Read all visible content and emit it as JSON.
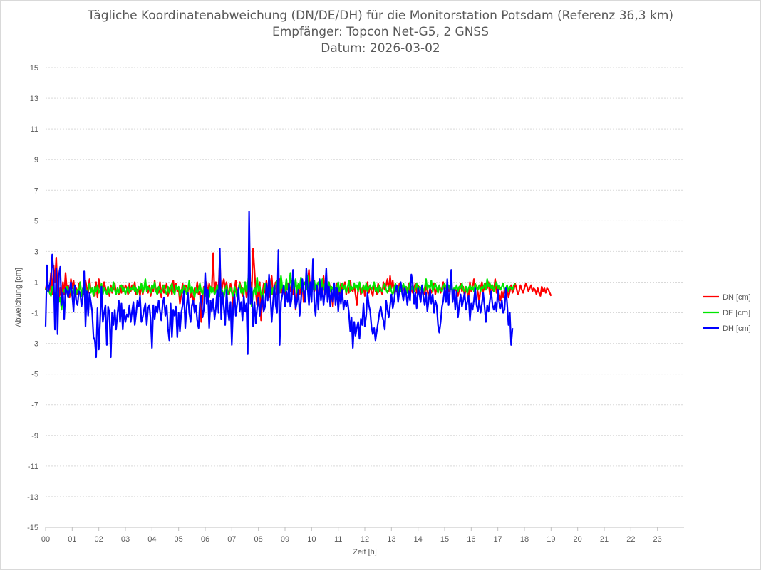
{
  "chart_data": {
    "type": "line",
    "title": "Tägliche Koordinatenabweichung (DN/DE/DH) für die Monitorstation Potsdam (Referenz 36,3 km)",
    "subtitle_receiver": "Empfänger: Topcon Net-G5, 2 GNSS",
    "subtitle_date": "Datum: 2026-03-02",
    "xlabel": "Zeit [h]",
    "ylabel": "Abweichung [cm]",
    "xlim": [
      0,
      24
    ],
    "ylim": [
      -15,
      15
    ],
    "x_ticks": [
      "00",
      "01",
      "02",
      "03",
      "04",
      "05",
      "06",
      "07",
      "08",
      "09",
      "10",
      "11",
      "12",
      "13",
      "14",
      "15",
      "16",
      "17",
      "18",
      "19",
      "20",
      "21",
      "22",
      "23"
    ],
    "y_ticks": [
      "15",
      "13",
      "11",
      "9",
      "7",
      "5",
      "3",
      "1",
      "-1",
      "-3",
      "-5",
      "-7",
      "-9",
      "-11",
      "-13",
      "-15"
    ],
    "y_tick_values": [
      15,
      13,
      11,
      9,
      7,
      5,
      3,
      1,
      -1,
      -3,
      -5,
      -7,
      -9,
      -11,
      -13,
      -15
    ],
    "grid": "horizontal-dotted",
    "legend_position": "right",
    "sample_interval_h": 0.05,
    "series": [
      {
        "name": "DN [cm]",
        "color": "#ff0000",
        "values": [
          0.5,
          1.0,
          0.7,
          0.4,
          1.6,
          0.2,
          2.1,
          1.0,
          2.6,
          0.4,
          0.0,
          0.6,
          -0.3,
          1.0,
          0.2,
          1.6,
          0.5,
          0.8,
          0.0,
          1.2,
          0.6,
          1.1,
          0.4,
          0.6,
          0.2,
          0.9,
          1.0,
          0.1,
          0.6,
          0.2,
          1.1,
          0.6,
          0.3,
          1.2,
          0.4,
          0.6,
          0.4,
          0.1,
          1.0,
          0.0,
          1.2,
          0.5,
          0.8,
          0.3,
          1.0,
          0.6,
          0.3,
          0.7,
          0.1,
          0.8,
          0.3,
          0.6,
          0.9,
          0.2,
          0.6,
          0.2,
          0.8,
          0.3,
          0.8,
          0.4,
          0.8,
          0.6,
          0.2,
          0.9,
          0.4,
          0.8,
          0.5,
          1.0,
          0.2,
          0.5,
          0.6,
          0.1,
          0.9,
          0.2,
          0.6,
          0.9,
          0.5,
          0.3,
          0.8,
          0.1,
          0.8,
          0.4,
          1.1,
          0.4,
          0.6,
          0.3,
          1.0,
          0.0,
          0.8,
          0.3,
          0.6,
          0.9,
          0.1,
          0.5,
          0.8,
          0.2,
          1.1,
          0.3,
          0.9,
          0.4,
          0.6,
          -0.4,
          0.2,
          0.9,
          0.3,
          0.8,
          0.7,
          0.4,
          1.0,
          0.0,
          0.3,
          -0.5,
          0.6,
          0.3,
          1.0,
          0.2,
          0.4,
          -1.6,
          0.1,
          0.7,
          0.3,
          1.0,
          0.2,
          0.9,
          0.5,
          0.6,
          2.9,
          0.2,
          1.0,
          0.8,
          0.6,
          2.4,
          0.2,
          0.8,
          1.2,
          0.6,
          1.0,
          0.4,
          0.2,
          0.9,
          0.6,
          -0.8,
          0.5,
          1.1,
          0.2,
          0.6,
          1.0,
          0.6,
          0.1,
          0.4,
          1.0,
          0.0,
          0.6,
          0.4,
          1.0,
          0.5,
          3.2,
          1.8,
          0.4,
          -0.5,
          0.6,
          1.0,
          -1.5,
          0.2,
          0.9,
          0.3,
          1.1,
          0.4,
          0.0,
          0.8,
          1.4,
          0.2,
          0.6,
          1.0,
          0.2,
          0.6,
          1.2,
          0.3,
          0.8,
          0.5,
          0.1,
          0.6,
          0.9,
          0.3,
          0.4,
          1.1,
          0.2,
          0.6,
          -0.8,
          0.5,
          0.9,
          0.2,
          0.6,
          1.0,
          -0.3,
          0.4,
          0.6,
          0.9,
          1.8,
          0.2,
          0.6,
          1.2,
          0.4,
          0.8,
          0.2,
          0.0,
          1.1,
          0.4,
          0.6,
          1.4,
          0.2,
          0.8,
          0.3,
          1.0,
          0.6,
          0.2,
          -0.6,
          0.8,
          0.3,
          0.9,
          0.5,
          0.1,
          0.9,
          0.4,
          0.6,
          1.0,
          0.2,
          0.7,
          0.3,
          1.1,
          0.5,
          0.4,
          0.8,
          0.2,
          -0.5,
          0.6,
          0.9,
          0.2,
          0.5,
          0.8,
          0.1,
          0.6,
          1.0,
          0.3,
          0.8,
          0.4,
          0.1,
          0.9,
          0.6,
          0.2,
          0.9,
          0.4,
          0.6,
          0.2,
          1.0,
          0.5,
          0.8,
          1.2,
          0.4,
          1.4,
          0.6,
          1.1,
          0.3,
          0.7,
          0.4,
          0.2,
          0.9,
          0.5,
          0.6,
          0.8,
          0.2,
          0.6,
          0.4,
          0.9,
          0.1,
          0.7,
          0.3,
          0.6,
          0.9,
          0.3,
          0.8,
          0.4,
          0.0,
          0.7,
          0.4,
          0.2,
          0.8,
          0.4,
          0.1,
          0.6,
          0.3,
          0.5,
          0.9,
          0.2,
          0.6,
          0.4,
          0.8,
          0.3,
          0.6,
          1.0,
          0.4,
          0.2,
          0.8,
          0.4,
          0.6,
          1.0,
          0.3,
          0.2,
          0.6,
          0.4,
          0.1,
          0.5,
          0.9,
          0.4,
          0.7,
          0.1,
          0.6,
          0.3,
          0.0,
          1.0,
          0.4,
          0.6,
          1.2,
          0.5,
          0.8,
          0.3,
          -0.3,
          0.6,
          1.0,
          0.4,
          0.7,
          0.9,
          0.6,
          1.0,
          0.2,
          0.8,
          0.5,
          0.4,
          1.2,
          0.3,
          0.6,
          0.2,
          -0.2,
          0.4,
          0.0,
          0.5,
          0.2,
          0.6,
          0.0,
          0.4,
          0.8,
          0.3,
          0.5,
          0.9,
          0.6,
          0.2,
          0.4,
          0.8,
          0.5,
          0.3,
          0.6,
          0.9,
          0.7,
          0.4,
          0.6,
          0.8,
          0.4,
          0.6,
          0.5,
          0.2,
          0.6,
          0.3,
          0.1,
          0.7,
          0.4,
          0.6,
          0.3,
          0.6,
          0.5,
          0.3,
          0.1
        ]
      },
      {
        "name": "DE [cm]",
        "color": "#00e600",
        "values": [
          0.6,
          0.4,
          0.5,
          0.3,
          0.1,
          0.7,
          0.4,
          0.0,
          0.5,
          0.2,
          -0.3,
          0.0,
          -0.8,
          0.3,
          0.5,
          0.2,
          0.7,
          0.0,
          0.6,
          0.3,
          0.1,
          0.4,
          0.8,
          0.2,
          0.5,
          0.4,
          1.0,
          0.1,
          0.6,
          0.3,
          0.7,
          0.2,
          0.5,
          0.9,
          0.3,
          0.6,
          0.1,
          0.7,
          0.4,
          0.8,
          0.3,
          0.5,
          0.9,
          0.2,
          0.6,
          0.4,
          0.2,
          0.7,
          0.3,
          0.6,
          0.4,
          1.0,
          0.5,
          0.2,
          0.6,
          0.3,
          0.7,
          0.8,
          0.4,
          0.6,
          0.2,
          0.5,
          0.7,
          0.3,
          0.6,
          0.5,
          0.8,
          0.4,
          0.6,
          0.2,
          0.7,
          0.5,
          0.9,
          0.3,
          0.6,
          1.2,
          0.4,
          0.7,
          0.5,
          0.3,
          0.8,
          0.6,
          1.0,
          0.4,
          0.2,
          0.7,
          0.5,
          0.3,
          0.6,
          0.8,
          0.4,
          0.2,
          0.7,
          0.3,
          0.6,
          0.9,
          0.4,
          0.2,
          0.8,
          0.5,
          0.7,
          0.1,
          0.5,
          0.3,
          0.8,
          0.6,
          0.2,
          0.5,
          1.1,
          0.3,
          0.7,
          0.4,
          0.0,
          0.6,
          0.3,
          0.5,
          0.9,
          0.4,
          0.2,
          0.6,
          0.1,
          0.5,
          0.4,
          0.0,
          0.7,
          0.3,
          0.6,
          0.2,
          0.4,
          0.8,
          0.3,
          0.1,
          0.6,
          0.4,
          0.0,
          0.5,
          0.8,
          0.2,
          0.4,
          0.6,
          0.3,
          0.1,
          0.7,
          0.4,
          0.0,
          0.5,
          0.9,
          0.3,
          0.6,
          0.2,
          1.0,
          0.4,
          0.8,
          1.9,
          0.5,
          -0.6,
          0.3,
          0.6,
          0.2,
          1.3,
          0.4,
          0.7,
          0.2,
          -0.3,
          0.5,
          0.9,
          0.3,
          0.6,
          0.4,
          1.0,
          0.2,
          0.6,
          0.4,
          0.8,
          1.1,
          0.5,
          0.3,
          1.4,
          0.6,
          0.8,
          0.4,
          1.2,
          0.5,
          0.7,
          1.6,
          0.4,
          0.8,
          0.5,
          1.2,
          0.3,
          0.9,
          0.6,
          1.3,
          0.4,
          0.8,
          1.0,
          0.5,
          1.4,
          0.6,
          0.9,
          0.3,
          0.7,
          1.1,
          0.5,
          0.8,
          1.0,
          0.4,
          0.6,
          1.2,
          0.5,
          0.9,
          0.3,
          0.6,
          1.0,
          0.4,
          0.7,
          0.5,
          0.8,
          0.3,
          0.6,
          1.0,
          0.4,
          0.7,
          0.9,
          0.5,
          0.8,
          0.3,
          0.6,
          1.1,
          0.4,
          0.7,
          0.5,
          0.9,
          0.6,
          0.8,
          0.4,
          1.0,
          0.6,
          0.3,
          0.8,
          0.5,
          0.9,
          0.4,
          0.6,
          0.8,
          0.5,
          0.7,
          1.0,
          0.4,
          0.6,
          0.3,
          0.8,
          0.5,
          0.4,
          0.7,
          0.9,
          0.5,
          0.3,
          0.6,
          0.8,
          0.4,
          0.2,
          0.6,
          0.9,
          0.5,
          0.3,
          0.7,
          0.4,
          0.6,
          0.9,
          0.5,
          0.7,
          0.3,
          0.6,
          1.0,
          0.5,
          0.8,
          0.4,
          0.6,
          0.9,
          0.3,
          0.7,
          0.5,
          0.8,
          0.4,
          0.6,
          1.2,
          0.5,
          0.8,
          0.6,
          1.1,
          0.4,
          0.7,
          0.9,
          0.6,
          0.3,
          0.8,
          0.5,
          0.4,
          0.7,
          0.9,
          0.6,
          0.4,
          0.8,
          0.5,
          0.7,
          0.3,
          0.6,
          0.5,
          0.8,
          0.4,
          0.7,
          0.6,
          0.9,
          0.5,
          0.4,
          0.7,
          0.3,
          0.6,
          0.8,
          0.5,
          0.7,
          0.4,
          0.9,
          0.6,
          0.5,
          0.8,
          0.4,
          0.7,
          0.6,
          0.9,
          0.5,
          1.2,
          0.7,
          0.9,
          0.6,
          0.8,
          0.4,
          0.7,
          1.0,
          0.6,
          0.8,
          0.5,
          0.7,
          0.9,
          0.5,
          0.6,
          0.8,
          0.4,
          0.7,
          0.6,
          0.5,
          0.8,
          0.9
        ]
      },
      {
        "name": "DH [cm]",
        "color": "#0000ff",
        "values": [
          -1.9,
          2.1,
          0.4,
          0.8,
          1.2,
          2.8,
          1.6,
          -2.1,
          1.9,
          -2.4,
          1.5,
          2.0,
          -0.5,
          0.3,
          -1.4,
          0.6,
          0.4,
          0.0,
          0.5,
          1.0,
          0.2,
          -0.9,
          0.8,
          -0.2,
          -0.5,
          0.4,
          0.3,
          -0.6,
          0.1,
          1.7,
          -1.9,
          0.4,
          -1.2,
          0.3,
          -0.3,
          -0.9,
          -2.6,
          -2.8,
          -3.9,
          -0.7,
          -3.4,
          -1.5,
          0.7,
          -1.6,
          -1.0,
          -0.5,
          -3.1,
          -0.6,
          -1.0,
          -3.9,
          -1.0,
          -1.8,
          -0.8,
          -2.1,
          -1.1,
          -0.2,
          -1.6,
          -0.4,
          -2.1,
          -0.8,
          -1.6,
          -1.1,
          -1.3,
          -0.5,
          -1.6,
          -0.9,
          -0.3,
          -1.8,
          -1.1,
          -0.2,
          -0.6,
          0.1,
          -1.6,
          -1.3,
          -0.8,
          -0.4,
          -1.8,
          -0.7,
          -0.5,
          -1.5,
          -3.3,
          -0.5,
          -1.4,
          -0.6,
          -1.0,
          -0.2,
          -0.9,
          -1.5,
          -0.4,
          0.0,
          -1.2,
          -0.5,
          -2.0,
          -2.8,
          -0.4,
          -2.6,
          -0.8,
          -1.2,
          -0.6,
          -2.6,
          -1.0,
          -2.2,
          -1.0,
          -0.5,
          0.4,
          -2.0,
          -0.6,
          0.3,
          -1.0,
          -1.6,
          -0.5,
          -0.2,
          -1.0,
          -0.5,
          -1.5,
          -2.0,
          -0.4,
          0.1,
          -1.3,
          -0.8,
          1.6,
          -0.4,
          0.5,
          -2.0,
          -0.2,
          -0.9,
          -0.1,
          -1.4,
          -0.7,
          0.5,
          -1.0,
          3.2,
          -1.4,
          0.3,
          -0.6,
          -1.8,
          0.5,
          -0.8,
          -1.5,
          -0.3,
          -3.1,
          -0.7,
          0.2,
          -1.2,
          -0.4,
          0.6,
          -0.9,
          -0.3,
          -1.5,
          0.1,
          -0.9,
          -0.4,
          -3.7,
          5.6,
          -0.4,
          0.6,
          -1.9,
          -0.3,
          -1.7,
          -0.7,
          0.0,
          -1.2,
          -0.4,
          0.1,
          -0.9,
          -0.6,
          0.9,
          -0.2,
          1.5,
          0.2,
          -1.6,
          -0.3,
          0.8,
          -0.5,
          -1.0,
          3.1,
          -3.1,
          -0.3,
          0.2,
          0.8,
          -0.6,
          0.4,
          -0.3,
          0.9,
          -0.6,
          -0.1,
          1.8,
          0.4,
          -0.7,
          -0.3,
          0.5,
          -1.2,
          -0.2,
          1.2,
          0.4,
          -0.3,
          1.9,
          0.6,
          -0.5,
          1.0,
          -0.3,
          2.5,
          -0.4,
          -1.2,
          0.8,
          -0.8,
          1.2,
          -0.2,
          0.6,
          -0.5,
          0.4,
          1.9,
          -0.3,
          0.7,
          -0.6,
          0.5,
          -0.3,
          0.9,
          -0.5,
          0.6,
          -0.9,
          0.3,
          -0.4,
          0.5,
          -0.8,
          -0.2,
          -0.6,
          -0.2,
          -1.0,
          -2.2,
          -1.3,
          -3.3,
          -1.6,
          -2.5,
          -2.0,
          -1.6,
          -2.7,
          -1.4,
          -1.8,
          -0.4,
          -1.9,
          -1.2,
          0.3,
          -0.5,
          -0.9,
          -1.9,
          -2.4,
          -2.0,
          -2.8,
          -2.2,
          -1.6,
          -1.0,
          -0.6,
          -1.2,
          -1.5,
          -2.1,
          -0.2,
          -0.8,
          -1.3,
          -0.5,
          0.2,
          -0.7,
          -0.2,
          0.5,
          0.8,
          -0.3,
          0.4,
          1.0,
          0.3,
          -0.2,
          0.6,
          0.3,
          -0.5,
          0.4,
          -0.2,
          1.5,
          0.9,
          -0.4,
          0.3,
          -0.7,
          0.6,
          0.2,
          -0.3,
          0.8,
          0.1,
          -0.5,
          0.3,
          -0.9,
          -0.2,
          0.5,
          -0.4,
          0.2,
          -1.0,
          -0.2,
          -0.5,
          -1.8,
          -2.3,
          -1.6,
          -0.6,
          -0.2,
          0.6,
          -0.3,
          1.2,
          -0.5,
          0.4,
          1.8,
          -0.3,
          0.5,
          -0.8,
          0.4,
          -1.3,
          -0.5,
          0.2,
          -0.6,
          -0.2,
          0.3,
          -0.8,
          -0.3,
          0.1,
          -1.5,
          -0.4,
          -0.8,
          -0.2,
          0.6,
          -0.5,
          -0.9,
          -0.2,
          -1.0,
          -0.4,
          0.3,
          -0.6,
          -1.6,
          -0.5,
          -0.9,
          -0.2,
          0.4,
          -0.5,
          -0.8,
          -0.3,
          -0.9,
          0.5,
          -0.3,
          -0.7,
          -0.2,
          -1.0,
          -0.8,
          0.6,
          -0.4,
          -1.8,
          -1.0,
          -3.1,
          -2.0
        ]
      }
    ]
  }
}
